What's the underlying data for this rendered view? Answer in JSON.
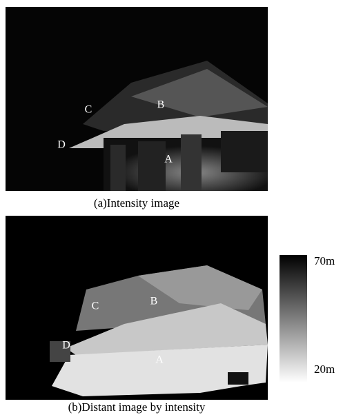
{
  "panels": [
    {
      "caption": "(a)Intensity image",
      "labels": [
        "A",
        "B",
        "C",
        "D"
      ]
    },
    {
      "caption": "(b)Distant image by intensity",
      "labels": [
        "A",
        "B",
        "C",
        "D"
      ]
    }
  ],
  "colorbar": {
    "top_label": "70m",
    "bottom_label": "20m"
  }
}
